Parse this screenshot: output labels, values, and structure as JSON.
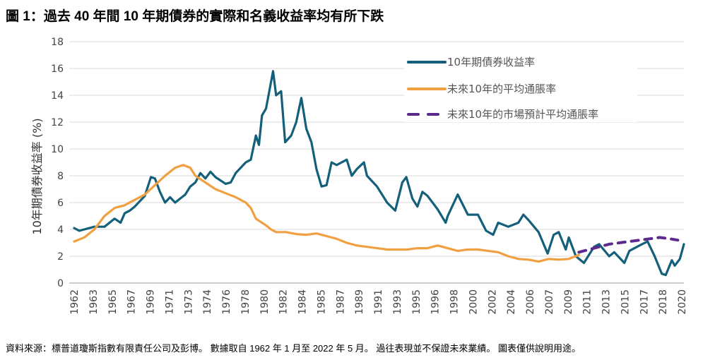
{
  "title": "圖 1：過去 40 年間 10 年期債券的實際和名義收益率均有所下跌",
  "footer": "資料來源：標普道瓊斯指數有限責任公司及彭博。 數據取自 1962 年 1 月至 2022 年 5 月。 過往表現並不保證未來業績。 圖表僅供說明用途。",
  "chart_data": {
    "type": "line",
    "title": "圖 1：過去 40 年間 10 年期債券的實際和名義收益率均有所下跌",
    "xlabel": "",
    "ylabel": "10年期債券收益率 (%)",
    "ylim": [
      0,
      18
    ],
    "xlim": [
      1962.0,
      2022.4
    ],
    "yticks": [
      "0",
      "2",
      "4",
      "6",
      "8",
      "10",
      "12",
      "14",
      "16",
      "18"
    ],
    "xticks": [
      "1962",
      "1963",
      "1965",
      "1967",
      "1969",
      "1971",
      "1973",
      "1974",
      "1976",
      "1978",
      "1980",
      "1982",
      "1984",
      "1985",
      "1987",
      "1989",
      "1991",
      "1993",
      "1995",
      "1996",
      "1998",
      "2000",
      "2002",
      "2004",
      "2006",
      "2007",
      "2009",
      "2011",
      "2013",
      "2015",
      "2017",
      "2018",
      "2020"
    ],
    "grid": true,
    "legend_position": "top-right",
    "series": [
      {
        "name": "10年期債券收益率",
        "color": "#14607A",
        "style": "solid",
        "x": [
          1962,
          1962.5,
          1963,
          1964,
          1965,
          1966,
          1966.6,
          1967,
          1967.5,
          1968,
          1969,
          1969.6,
          1970,
          1970.5,
          1971,
          1971.5,
          1972,
          1973,
          1973.5,
          1974,
          1974.5,
          1975,
          1975.5,
          1976,
          1977,
          1977.5,
          1978,
          1979,
          1979.5,
          1980,
          1980.3,
          1980.6,
          1981,
          1981.7,
          1982,
          1982.5,
          1982.9,
          1983.5,
          1984,
          1984.5,
          1985,
          1985.5,
          1986,
          1986.5,
          1987,
          1987.5,
          1988,
          1988.5,
          1989,
          1989.5,
          1990,
          1990.7,
          1991,
          1992,
          1993,
          1993.8,
          1994.5,
          1994.9,
          1995.5,
          1996,
          1996.5,
          1997,
          1998,
          1998.8,
          1999,
          2000,
          2001,
          2002,
          2002.8,
          2003.5,
          2004,
          2005,
          2006,
          2006.5,
          2007,
          2008,
          2008.9,
          2009.5,
          2010,
          2010.7,
          2011,
          2011.7,
          2012.5,
          2013.5,
          2014,
          2015,
          2015.5,
          2016.5,
          2017,
          2018,
          2018.8,
          2019.5,
          2020.2,
          2020.6,
          2021.2,
          2021.5,
          2022,
          2022.4
        ],
        "y": [
          4.1,
          3.9,
          4.0,
          4.2,
          4.2,
          4.8,
          4.5,
          5.2,
          5.4,
          5.7,
          6.5,
          7.9,
          7.8,
          6.8,
          6.0,
          6.4,
          6.0,
          6.6,
          7.2,
          7.5,
          8.2,
          7.8,
          8.3,
          7.9,
          7.4,
          7.5,
          8.2,
          9.0,
          9.2,
          11.0,
          10.3,
          12.5,
          13.0,
          15.8,
          14.0,
          14.3,
          10.5,
          11.0,
          12.0,
          13.8,
          11.5,
          10.5,
          8.5,
          7.2,
          7.3,
          9.0,
          8.8,
          9.0,
          9.2,
          8.0,
          8.5,
          9.0,
          8.0,
          7.2,
          6.0,
          5.4,
          7.5,
          7.9,
          6.3,
          5.7,
          6.8,
          6.5,
          5.5,
          4.5,
          5.0,
          6.6,
          5.1,
          5.1,
          3.9,
          3.6,
          4.5,
          4.2,
          4.5,
          5.1,
          4.7,
          3.8,
          2.2,
          3.6,
          3.8,
          2.5,
          3.4,
          2.0,
          1.5,
          2.7,
          2.9,
          2.0,
          2.3,
          1.5,
          2.4,
          2.8,
          3.1,
          2.0,
          0.7,
          0.6,
          1.7,
          1.3,
          1.8,
          2.9
        ]
      },
      {
        "name": "未來10年的平均通脹率",
        "color": "#F0A040",
        "style": "solid",
        "x": [
          1962,
          1963,
          1964,
          1965,
          1966,
          1967,
          1968,
          1969,
          1970,
          1971,
          1972,
          1972.8,
          1973.5,
          1974,
          1975,
          1976,
          1977,
          1978,
          1979,
          1979.5,
          1980,
          1981,
          1981.5,
          1982,
          1983,
          1984,
          1985,
          1986,
          1987,
          1988,
          1989,
          1990,
          1991,
          1992,
          1993,
          1994,
          1995,
          1996,
          1997,
          1998,
          1999,
          2000,
          2001,
          2002,
          2003,
          2004,
          2005,
          2006,
          2007,
          2008,
          2009,
          2010,
          2011,
          2012
        ],
        "y": [
          3.1,
          3.4,
          4.0,
          5.0,
          5.6,
          5.8,
          6.2,
          6.6,
          7.3,
          8.0,
          8.6,
          8.8,
          8.6,
          8.0,
          7.5,
          7.0,
          6.7,
          6.4,
          6.0,
          5.6,
          4.8,
          4.3,
          4.0,
          3.8,
          3.8,
          3.65,
          3.6,
          3.7,
          3.5,
          3.3,
          3.0,
          2.8,
          2.7,
          2.6,
          2.5,
          2.5,
          2.5,
          2.6,
          2.6,
          2.8,
          2.6,
          2.4,
          2.5,
          2.5,
          2.4,
          2.3,
          2.0,
          1.8,
          1.75,
          1.6,
          1.8,
          1.75,
          1.8,
          2.1
        ]
      },
      {
        "name": "未來10年的市場預計平均通脹率",
        "color": "#5B2A8C",
        "style": "dashed",
        "x": [
          2012,
          2013,
          2014,
          2015,
          2016,
          2017,
          2018,
          2019,
          2020,
          2021,
          2021.8
        ],
        "y": [
          2.3,
          2.5,
          2.7,
          2.9,
          3.0,
          3.1,
          3.2,
          3.3,
          3.4,
          3.3,
          3.2
        ]
      }
    ]
  }
}
